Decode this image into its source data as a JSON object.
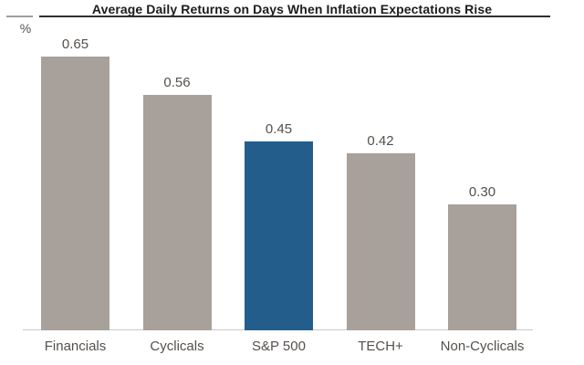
{
  "header": {
    "title": "Average Daily Returns on Days When Inflation Expectations Rise",
    "y_axis_unit": "%"
  },
  "chart_data": {
    "type": "bar",
    "title": "Average Daily Returns on Days When Inflation Expectations Rise",
    "categories": [
      "Financials",
      "Cyclicals",
      "S&P 500",
      "TECH+",
      "Non-Cyclicals"
    ],
    "values": [
      0.65,
      0.56,
      0.45,
      0.42,
      0.3
    ],
    "value_labels": [
      "0.65",
      "0.56",
      "0.45",
      "0.42",
      "0.30"
    ],
    "xlabel": "",
    "ylabel": "%",
    "ylim": [
      0,
      0.78
    ],
    "grid": false,
    "legend": false,
    "highlight_index": 2,
    "bar_colors": [
      "#a8a19b",
      "#a8a19b",
      "#235d8c",
      "#a8a19b",
      "#a8a19b"
    ],
    "colors": {
      "bar_gray": "#a8a19b",
      "bar_blue": "#235d8c",
      "text": "#55504c",
      "title": "#1c1c1c",
      "underline": "#2f2f2f",
      "tick": "#9e9e9e",
      "baseline": "#c9c9c9",
      "background": "#ffffff"
    }
  }
}
